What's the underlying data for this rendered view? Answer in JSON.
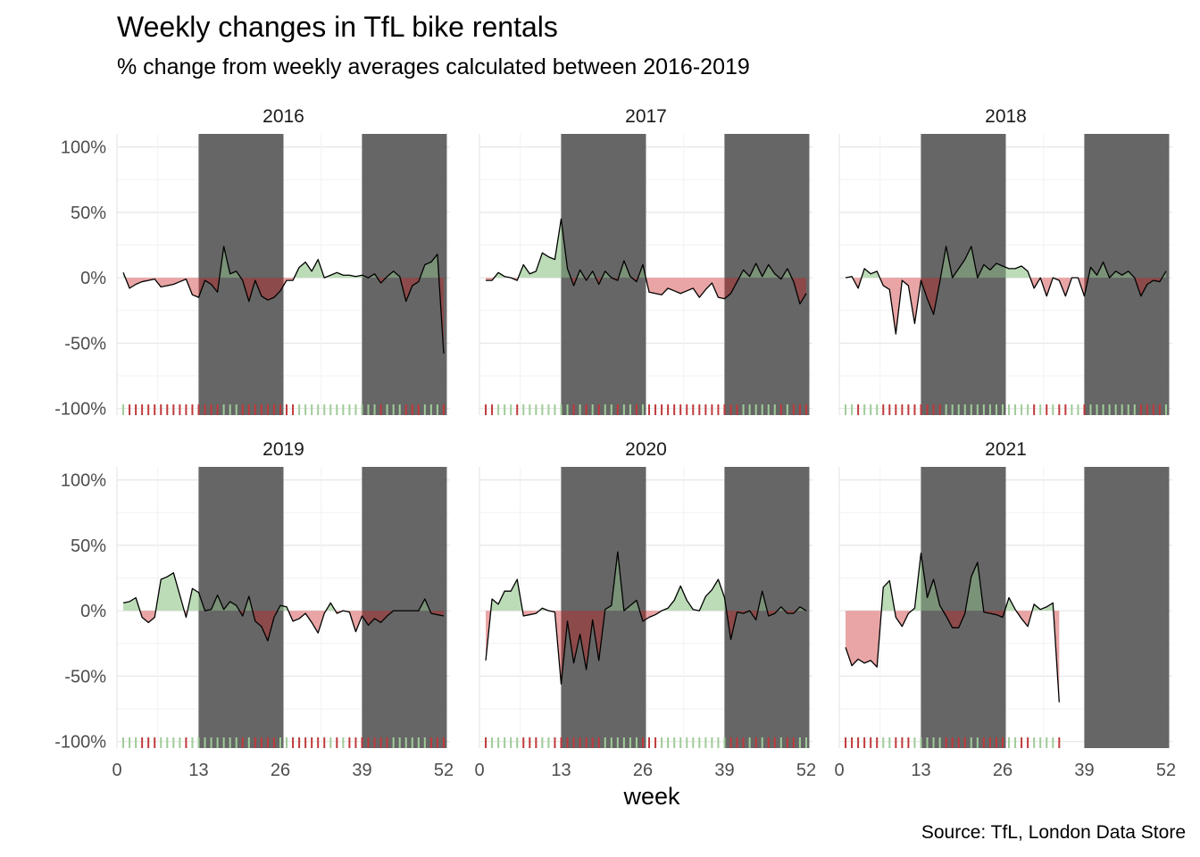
{
  "title": "Weekly changes in TfL bike rentals",
  "subtitle": "% change from weekly averages calculated between 2016-2019",
  "caption": "Source: TfL, London Data Store",
  "chart_data": {
    "type": "area",
    "facet_by": "year",
    "xlabel": "week",
    "ylabel": "",
    "xlim": [
      0,
      53
    ],
    "ylim": [
      -1.05,
      1.1
    ],
    "x_ticks": [
      0,
      13,
      26,
      39,
      52
    ],
    "x_tick_labels": [
      "0",
      "13",
      "26",
      "39",
      "52"
    ],
    "y_ticks": [
      -1,
      -0.5,
      0,
      0.5,
      1
    ],
    "y_tick_labels": [
      "-100%",
      "-50%",
      "0%",
      "50%",
      "100%"
    ],
    "grid": true,
    "shaded_week_ranges": [
      [
        13,
        26.5
      ],
      [
        39,
        52.5
      ]
    ],
    "colors": {
      "positive_fill": "#bcdcb8",
      "negative_fill": "#e9a5a5",
      "positive_fill_in_band": "#7a9277",
      "negative_fill_in_band": "#8c4a4a",
      "positive_rug": "#9fcb98",
      "negative_rug": "#c0393b",
      "band": "#5a5a5a",
      "line": "#000000"
    },
    "facets": [
      {
        "year": "2016",
        "weeks": [
          1,
          2,
          3,
          4,
          5,
          6,
          7,
          8,
          9,
          10,
          11,
          12,
          13,
          14,
          15,
          16,
          17,
          18,
          19,
          20,
          21,
          22,
          23,
          24,
          25,
          26,
          27,
          28,
          29,
          30,
          31,
          32,
          33,
          34,
          35,
          36,
          37,
          38,
          39,
          40,
          41,
          42,
          43,
          44,
          45,
          46,
          47,
          48,
          49,
          50,
          51,
          52
        ],
        "values": [
          0.04,
          -0.08,
          -0.05,
          -0.03,
          -0.02,
          -0.01,
          -0.07,
          -0.06,
          -0.05,
          -0.03,
          -0.01,
          -0.13,
          -0.15,
          -0.02,
          -0.05,
          -0.11,
          0.24,
          0.03,
          0.05,
          -0.02,
          -0.18,
          -0.02,
          -0.14,
          -0.17,
          -0.15,
          -0.1,
          -0.02,
          -0.02,
          0.08,
          0.12,
          0.05,
          0.14,
          0,
          0.02,
          0.04,
          0.02,
          0.02,
          0.01,
          0.02,
          0,
          0.03,
          -0.04,
          0.01,
          0.05,
          0.01,
          -0.18,
          -0.06,
          -0.03,
          0.1,
          0.12,
          0.18,
          -0.58
        ]
      },
      {
        "year": "2017",
        "weeks": [
          1,
          2,
          3,
          4,
          5,
          6,
          7,
          8,
          9,
          10,
          11,
          12,
          13,
          14,
          15,
          16,
          17,
          18,
          19,
          20,
          21,
          22,
          23,
          24,
          25,
          26,
          27,
          28,
          29,
          30,
          31,
          32,
          33,
          34,
          35,
          36,
          37,
          38,
          39,
          40,
          41,
          42,
          43,
          44,
          45,
          46,
          47,
          48,
          49,
          50,
          51,
          52
        ],
        "values": [
          -0.02,
          -0.02,
          0.04,
          0.01,
          0,
          -0.02,
          0.1,
          0.03,
          0.05,
          0.19,
          0.16,
          0.14,
          0.45,
          0.07,
          -0.06,
          0.06,
          -0.02,
          0.05,
          -0.05,
          0.05,
          0,
          -0.02,
          0.13,
          0.01,
          -0.03,
          0.1,
          -0.11,
          -0.12,
          -0.13,
          -0.08,
          -0.1,
          -0.12,
          -0.1,
          -0.08,
          -0.15,
          -0.09,
          -0.04,
          -0.15,
          -0.16,
          -0.12,
          -0.03,
          0.06,
          0.01,
          0.11,
          0.01,
          0.1,
          0.03,
          -0.01,
          0.07,
          -0.03,
          -0.2,
          -0.12
        ]
      },
      {
        "year": "2018",
        "weeks": [
          1,
          2,
          3,
          4,
          5,
          6,
          7,
          8,
          9,
          10,
          11,
          12,
          13,
          14,
          15,
          16,
          17,
          18,
          19,
          20,
          21,
          22,
          23,
          24,
          25,
          26,
          27,
          28,
          29,
          30,
          31,
          32,
          33,
          34,
          35,
          36,
          37,
          38,
          39,
          40,
          41,
          42,
          43,
          44,
          45,
          46,
          47,
          48,
          49,
          50,
          51,
          52
        ],
        "values": [
          0,
          0.01,
          -0.08,
          0.07,
          0.03,
          0.05,
          -0.06,
          -0.09,
          -0.43,
          -0.02,
          -0.06,
          -0.35,
          -0.02,
          -0.16,
          -0.28,
          -0.03,
          0.24,
          0,
          0.07,
          0.14,
          0.24,
          0,
          0.1,
          0.06,
          0.11,
          0.09,
          0.07,
          0.07,
          0.09,
          0.05,
          -0.08,
          0,
          -0.14,
          0,
          -0.02,
          -0.14,
          0,
          0,
          -0.14,
          0.08,
          0.02,
          0.12,
          0,
          0.05,
          0.02,
          0.05,
          0,
          -0.14,
          -0.05,
          -0.02,
          -0.03,
          0.05
        ]
      },
      {
        "year": "2019",
        "weeks": [
          1,
          2,
          3,
          4,
          5,
          6,
          7,
          8,
          9,
          10,
          11,
          12,
          13,
          14,
          15,
          16,
          17,
          18,
          19,
          20,
          21,
          22,
          23,
          24,
          25,
          26,
          27,
          28,
          29,
          30,
          31,
          32,
          33,
          34,
          35,
          36,
          37,
          38,
          39,
          40,
          41,
          42,
          43,
          44,
          45,
          46,
          47,
          48,
          49,
          50,
          51,
          52
        ],
        "values": [
          0.06,
          0.07,
          0.1,
          -0.05,
          -0.09,
          -0.05,
          0.24,
          0.26,
          0.29,
          0.12,
          -0.05,
          0.17,
          0.14,
          0,
          0.01,
          0.12,
          0.01,
          0.07,
          0.04,
          -0.04,
          0.11,
          -0.08,
          -0.12,
          -0.23,
          -0.05,
          0.04,
          0.03,
          -0.08,
          -0.06,
          -0.02,
          -0.09,
          -0.17,
          -0.02,
          0.06,
          -0.02,
          0,
          -0.01,
          -0.16,
          -0.04,
          -0.11,
          -0.06,
          -0.09,
          -0.04,
          0,
          0,
          0,
          0,
          0,
          0.09,
          -0.02,
          -0.03,
          -0.04
        ]
      },
      {
        "year": "2020",
        "weeks": [
          1,
          2,
          3,
          4,
          5,
          6,
          7,
          8,
          9,
          10,
          11,
          12,
          13,
          14,
          15,
          16,
          17,
          18,
          19,
          20,
          21,
          22,
          23,
          24,
          25,
          26,
          27,
          28,
          29,
          30,
          31,
          32,
          33,
          34,
          35,
          36,
          37,
          38,
          39,
          40,
          41,
          42,
          43,
          44,
          45,
          46,
          47,
          48,
          49,
          50,
          51,
          52
        ],
        "values": [
          -0.38,
          0.09,
          0.05,
          0.15,
          0.15,
          0.24,
          -0.04,
          -0.03,
          -0.02,
          0.02,
          0,
          -0.01,
          -0.56,
          -0.08,
          -0.4,
          -0.18,
          -0.45,
          -0.07,
          -0.38,
          0.01,
          0.04,
          0.45,
          0,
          0.04,
          0.08,
          -0.08,
          -0.05,
          -0.03,
          0,
          0.02,
          0.08,
          0.19,
          0.08,
          0.01,
          0,
          0.11,
          0.16,
          0.24,
          0.1,
          -0.22,
          -0.01,
          -0.02,
          0,
          -0.07,
          0.15,
          -0.04,
          -0.02,
          0.03,
          -0.02,
          -0.02,
          0.03,
          0
        ]
      },
      {
        "year": "2021",
        "weeks": [
          1,
          2,
          3,
          4,
          5,
          6,
          7,
          8,
          9,
          10,
          11,
          12,
          13,
          14,
          15,
          16,
          17,
          18,
          19,
          20,
          21,
          22,
          23,
          24,
          25,
          26,
          27,
          28,
          29,
          30,
          31,
          32,
          33,
          34,
          35
        ],
        "values": [
          -0.28,
          -0.42,
          -0.37,
          -0.4,
          -0.38,
          -0.43,
          0.18,
          0.23,
          -0.05,
          -0.12,
          -0.02,
          0.02,
          0.44,
          0.1,
          0.24,
          0.04,
          -0.04,
          -0.13,
          -0.13,
          -0.02,
          0.26,
          0.37,
          -0.01,
          -0.02,
          -0.03,
          -0.05,
          0.1,
          0.01,
          -0.06,
          -0.12,
          0.05,
          0.01,
          0.03,
          0.06,
          -0.7
        ]
      }
    ]
  }
}
